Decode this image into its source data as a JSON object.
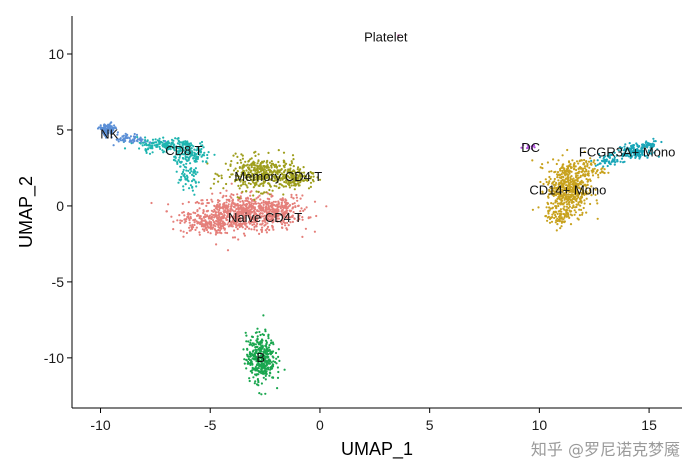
{
  "chart_data": {
    "type": "scatter",
    "title": "",
    "xlabel": "UMAP_1",
    "ylabel": "UMAP_2",
    "xlim": [
      -11.3,
      16.5
    ],
    "ylim": [
      -13.3,
      12.5
    ],
    "x_ticks": [
      -10,
      -5,
      0,
      5,
      10,
      15
    ],
    "x_tick_labels": [
      "-10",
      "-5",
      "0",
      "5",
      "10",
      "15"
    ],
    "y_ticks": [
      10,
      5,
      0,
      -5,
      -10
    ],
    "y_tick_labels": [
      "10",
      "5",
      "0",
      "-5",
      "-10"
    ],
    "grid": false,
    "legend": "none",
    "clusters": [
      {
        "name": "Naive CD4 T",
        "color": "#E57F7A",
        "label_x": -2.5,
        "label_y": -0.8,
        "blobs": [
          [
            -3.5,
            -0.5,
            2.0,
            1.0,
            700
          ],
          [
            -5.2,
            -1.1,
            1.0,
            0.6,
            150
          ],
          [
            -1.8,
            -0.3,
            1.0,
            0.8,
            150
          ]
        ]
      },
      {
        "name": "Memory CD4 T",
        "color": "#9E9E1C",
        "label_x": -1.9,
        "label_y": 1.9,
        "blobs": [
          [
            -2.6,
            2.1,
            1.4,
            0.9,
            420
          ],
          [
            -1.2,
            1.8,
            0.7,
            0.5,
            100
          ]
        ]
      },
      {
        "name": "CD14+ Mono",
        "color": "#C8A21E",
        "label_x": 11.3,
        "label_y": 1.0,
        "blobs": [
          [
            11.3,
            1.1,
            0.8,
            1.5,
            520
          ],
          [
            12.1,
            2.4,
            0.7,
            0.6,
            80
          ],
          [
            10.9,
            -0.7,
            0.5,
            0.5,
            60
          ]
        ]
      },
      {
        "name": "B",
        "color": "#19A64E",
        "label_x": -2.7,
        "label_y": -10.0,
        "blobs": [
          [
            -2.7,
            -10.0,
            0.55,
            1.3,
            380
          ]
        ]
      },
      {
        "name": "CD8 T",
        "color": "#1FB5B0",
        "label_x": -6.2,
        "label_y": 3.6,
        "blobs": [
          [
            -7.0,
            4.0,
            1.1,
            0.4,
            180
          ],
          [
            -5.8,
            3.3,
            0.7,
            0.5,
            120
          ],
          [
            -6.0,
            1.8,
            0.5,
            0.9,
            60
          ]
        ]
      },
      {
        "name": "FCGR3A+ Mono",
        "color": "#1AA6B8",
        "label_x": 14.0,
        "label_y": 3.5,
        "blobs": [
          [
            14.3,
            3.6,
            0.6,
            0.35,
            140
          ],
          [
            13.2,
            3.0,
            0.5,
            0.35,
            60
          ],
          [
            15.0,
            4.0,
            0.4,
            0.25,
            40
          ]
        ]
      },
      {
        "name": "NK",
        "color": "#5B8FD6",
        "label_x": -9.6,
        "label_y": 4.7,
        "blobs": [
          [
            -9.7,
            5.0,
            0.3,
            0.35,
            110
          ],
          [
            -8.6,
            4.4,
            0.6,
            0.25,
            60
          ]
        ]
      },
      {
        "name": "DC",
        "color": "#B24FE0",
        "label_x": 9.6,
        "label_y": 3.8,
        "blobs": [
          [
            9.6,
            3.9,
            0.25,
            0.12,
            12
          ]
        ]
      },
      {
        "name": "Platelet",
        "color": "#E67AC8",
        "label_x": 3.0,
        "label_y": 11.1,
        "blobs": [
          [
            3.6,
            11.2,
            0.05,
            0.05,
            3
          ]
        ]
      }
    ]
  },
  "watermark": "知乎 @罗尼诺克梦魇"
}
